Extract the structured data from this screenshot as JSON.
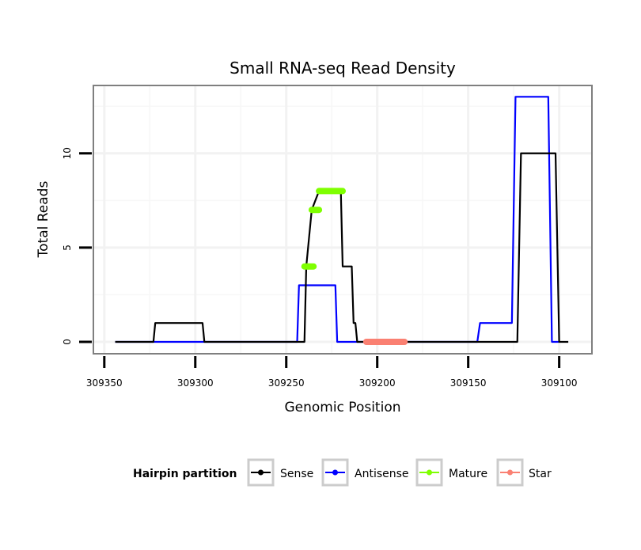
{
  "chart_data": {
    "type": "line",
    "title": "Small RNA-seq Read Density",
    "xlabel": "Genomic Position",
    "ylabel": "Total Reads",
    "xlim": [
      309356,
      309082
    ],
    "x_reversed": true,
    "ylim": [
      -0.63,
      13.6
    ],
    "x_ticks": [
      309350,
      309300,
      309250,
      309200,
      309150,
      309100
    ],
    "x_tick_labels": [
      "309350",
      "309300",
      "309250",
      "309200",
      "309150",
      "309100"
    ],
    "y_ticks": [
      0,
      5,
      10
    ],
    "y_tick_labels": [
      "0",
      "5",
      "10"
    ],
    "grid": true,
    "legend": {
      "title": "Hairpin partition",
      "placement": "bottom",
      "entries": [
        "Sense",
        "Antisense",
        "Mature",
        "Star"
      ]
    },
    "series": [
      {
        "name": "Antisense",
        "color": "#0000ff",
        "kind": "line",
        "points": [
          [
            309344,
            0
          ],
          [
            309244,
            0
          ],
          [
            309243,
            3
          ],
          [
            309223,
            3
          ],
          [
            309222,
            0
          ],
          [
            309145,
            0
          ],
          [
            309143.5,
            1
          ],
          [
            309126,
            1
          ],
          [
            309124,
            13
          ],
          [
            309106,
            13
          ],
          [
            309104,
            0
          ],
          [
            309100,
            0
          ]
        ]
      },
      {
        "name": "Sense",
        "color": "#000000",
        "kind": "line",
        "points": [
          [
            309344,
            0
          ],
          [
            309323,
            0
          ],
          [
            309322,
            1
          ],
          [
            309296,
            1
          ],
          [
            309295,
            0
          ],
          [
            309240,
            0
          ],
          [
            309239,
            4
          ],
          [
            309236,
            7
          ],
          [
            309232,
            8
          ],
          [
            309220,
            8
          ],
          [
            309219,
            4
          ],
          [
            309214,
            4
          ],
          [
            309213,
            1
          ],
          [
            309212,
            1
          ],
          [
            309211,
            0
          ],
          [
            309123,
            0
          ],
          [
            309121,
            10
          ],
          [
            309102,
            10
          ],
          [
            309100,
            0
          ],
          [
            309095,
            0
          ]
        ]
      },
      {
        "name": "Mature",
        "color": "#7fff00",
        "kind": "segments",
        "segments": [
          [
            309240,
            309235,
            4
          ],
          [
            309236,
            309232,
            7
          ],
          [
            309232,
            309219,
            8
          ]
        ]
      },
      {
        "name": "Star",
        "color": "#fa8072",
        "kind": "segments",
        "segments": [
          [
            309206,
            309185,
            0
          ]
        ]
      }
    ]
  }
}
